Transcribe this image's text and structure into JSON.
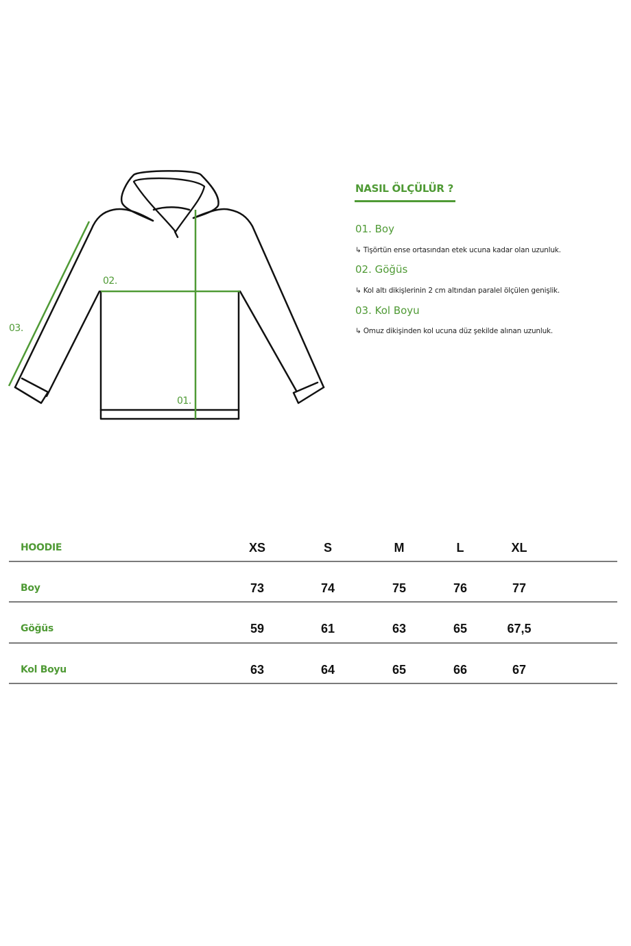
{
  "colors": {
    "accent": "#4f9a35",
    "outline": "#111111",
    "rule": "#7a7a7a"
  },
  "diagram": {
    "labels": {
      "boy": "01.",
      "gogus": "02.",
      "kol_boyu": "03."
    }
  },
  "guide": {
    "title": "NASIL ÖLÇÜLÜR ?",
    "items": [
      {
        "title": "01. Boy",
        "desc": "↳ Tişörtün ense ortasından etek ucuna kadar olan uzunluk."
      },
      {
        "title": "02. Göğüs",
        "desc": "↳ Kol altı dikişlerinin 2 cm altından paralel ölçülen genişlik."
      },
      {
        "title": "03. Kol Boyu",
        "desc": "↳ Omuz dikişinden kol ucuna düz şekilde alınan uzunluk."
      }
    ]
  },
  "table": {
    "title": "HOODIE",
    "sizes": [
      "XS",
      "S",
      "M",
      "L",
      "XL"
    ],
    "rows": [
      {
        "label": "Boy",
        "values": [
          "73",
          "74",
          "75",
          "76",
          "77"
        ]
      },
      {
        "label": "Göğüs",
        "values": [
          "59",
          "61",
          "63",
          "65",
          "67,5"
        ]
      },
      {
        "label": "Kol Boyu",
        "values": [
          "63",
          "64",
          "65",
          "66",
          "67"
        ]
      }
    ]
  }
}
